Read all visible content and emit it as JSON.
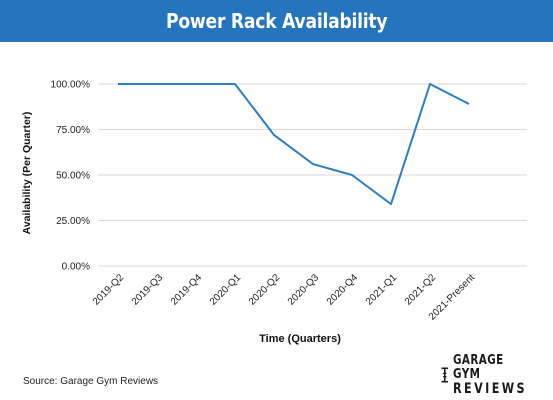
{
  "chart_data": {
    "type": "line",
    "title": "Power Rack Availability",
    "xlabel": "Time (Quarters)",
    "ylabel": "Availability (Per Quarter)",
    "categories": [
      "2019-Q2",
      "2019-Q3",
      "2019-Q4",
      "2020-Q1",
      "2020-Q2",
      "2020-Q3",
      "2020-Q4",
      "2021-Q1",
      "2021-Q2",
      "2021-Present"
    ],
    "series": [
      {
        "values": [
          100,
          100,
          100,
          100,
          72,
          56,
          50,
          34,
          100,
          89
        ]
      }
    ],
    "ylim": [
      0,
      100
    ],
    "yticks": [
      "0.00%",
      "25.00%",
      "50.00%",
      "75.00%",
      "100.00%"
    ],
    "grid": "horizontal",
    "legend": "none"
  },
  "source": "Source: Garage Gym Reviews",
  "logo": {
    "line1": "GARAGE GYM",
    "line2": "REVIEWS"
  },
  "colors": {
    "header": "#2575be",
    "line": "#2f7ec2",
    "grid": "#d9d9d9"
  }
}
